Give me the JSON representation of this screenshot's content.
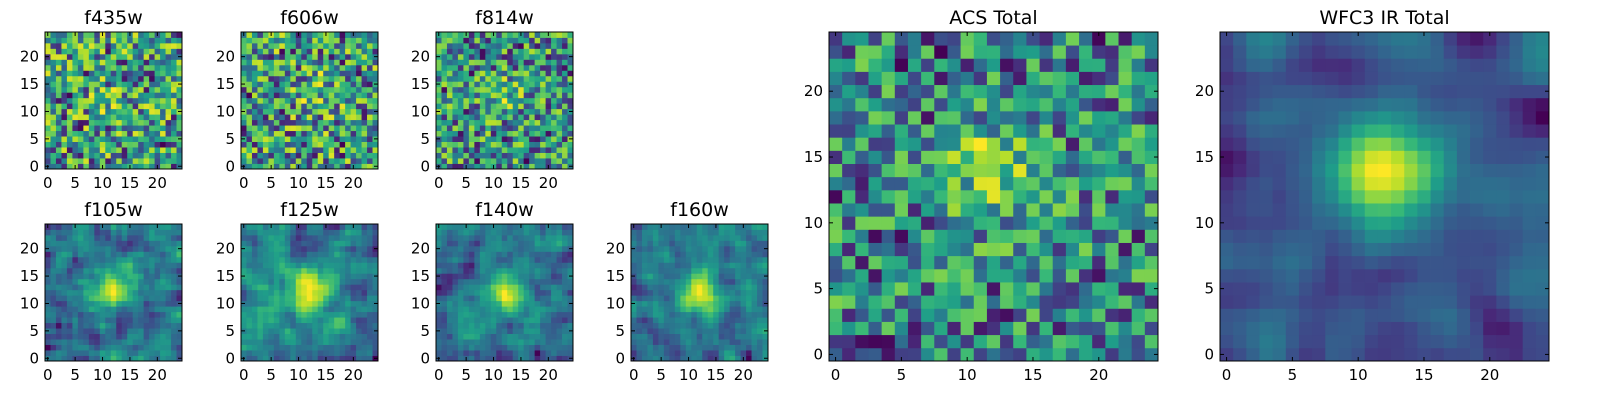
{
  "chart_data": [
    {
      "type": "heatmap",
      "title": "f435w",
      "grid_size": 25,
      "xticks": [
        "0",
        "5",
        "10",
        "15",
        "20"
      ],
      "yticks": [
        "0",
        "5",
        "10",
        "15",
        "20"
      ],
      "seed": 11,
      "peak": [
        12,
        12
      ],
      "peak_strength": 0.08,
      "blur": 0,
      "colormap": "viridis"
    },
    {
      "type": "heatmap",
      "title": "f606w",
      "grid_size": 25,
      "xticks": [
        "0",
        "5",
        "10",
        "15",
        "20"
      ],
      "yticks": [
        "0",
        "5",
        "10",
        "15",
        "20"
      ],
      "seed": 23,
      "peak": [
        13,
        13
      ],
      "peak_strength": 0.12,
      "blur": 0,
      "colormap": "viridis"
    },
    {
      "type": "heatmap",
      "title": "f814w",
      "grid_size": 25,
      "xticks": [
        "0",
        "5",
        "10",
        "15",
        "20"
      ],
      "yticks": [
        "0",
        "5",
        "10",
        "15",
        "20"
      ],
      "seed": 37,
      "peak": [
        12,
        13
      ],
      "peak_strength": 0.15,
      "blur": 0,
      "colormap": "viridis"
    },
    {
      "type": "heatmap",
      "title": "f105w",
      "grid_size": 25,
      "xticks": [
        "0",
        "5",
        "10",
        "15",
        "20"
      ],
      "yticks": [
        "0",
        "5",
        "10",
        "15",
        "20"
      ],
      "seed": 41,
      "peak": [
        12,
        13
      ],
      "peak_strength": 0.35,
      "blur": 1,
      "colormap": "viridis"
    },
    {
      "type": "heatmap",
      "title": "f125w",
      "grid_size": 25,
      "xticks": [
        "0",
        "5",
        "10",
        "15",
        "20"
      ],
      "yticks": [
        "0",
        "5",
        "10",
        "15",
        "20"
      ],
      "seed": 53,
      "peak": [
        12,
        12
      ],
      "peak_strength": 0.4,
      "blur": 1,
      "colormap": "viridis"
    },
    {
      "type": "heatmap",
      "title": "f140w",
      "grid_size": 25,
      "xticks": [
        "0",
        "5",
        "10",
        "15",
        "20"
      ],
      "yticks": [
        "0",
        "5",
        "10",
        "15",
        "20"
      ],
      "seed": 67,
      "peak": [
        12,
        12
      ],
      "peak_strength": 0.35,
      "blur": 1,
      "colormap": "viridis"
    },
    {
      "type": "heatmap",
      "title": "f160w",
      "grid_size": 25,
      "xticks": [
        "0",
        "5",
        "10",
        "15",
        "20"
      ],
      "yticks": [
        "0",
        "5",
        "10",
        "15",
        "20"
      ],
      "seed": 79,
      "peak": [
        12,
        12
      ],
      "peak_strength": 0.45,
      "blur": 1,
      "colormap": "viridis"
    },
    {
      "type": "heatmap",
      "title": "ACS Total",
      "grid_size": 25,
      "xticks": [
        "0",
        "5",
        "10",
        "15",
        "20"
      ],
      "yticks": [
        "0",
        "5",
        "10",
        "15",
        "20"
      ],
      "seed": 97,
      "peak": [
        12,
        14
      ],
      "peak_strength": 0.3,
      "blur": 0,
      "colormap": "viridis"
    },
    {
      "type": "heatmap",
      "title": "WFC3 IR Total",
      "grid_size": 25,
      "xticks": [
        "0",
        "5",
        "10",
        "15",
        "20"
      ],
      "yticks": [
        "0",
        "5",
        "10",
        "15",
        "20"
      ],
      "seed": 113,
      "peak": [
        12,
        14
      ],
      "peak_strength": 0.55,
      "blur": 2,
      "colormap": "viridis"
    }
  ]
}
